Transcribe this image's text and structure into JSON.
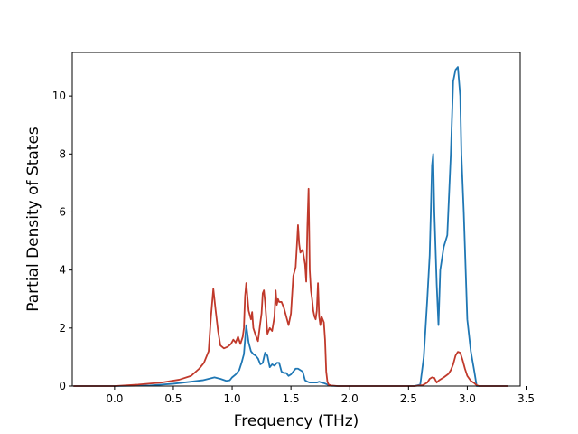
{
  "chart_data": {
    "type": "line",
    "title": "",
    "xlabel": "Frequency (THz)",
    "ylabel": "Partial Density of States",
    "xlim": [
      -0.36,
      3.45
    ],
    "ylim": [
      0,
      11.5
    ],
    "xticks": [
      0.0,
      0.5,
      1.0,
      1.5,
      2.0,
      2.5,
      3.0,
      3.5
    ],
    "xtick_labels": [
      "0.0",
      "0.5",
      "1.0",
      "1.5",
      "2.0",
      "2.5",
      "3.0",
      "3.5"
    ],
    "yticks": [
      0,
      2,
      4,
      6,
      8,
      10
    ],
    "ytick_labels": [
      "0",
      "2",
      "4",
      "6",
      "8",
      "10"
    ],
    "grid": false,
    "legend": "none",
    "series": [
      {
        "color": "#1f77b4",
        "x": [
          -0.35,
          0.0,
          0.3,
          0.5,
          0.65,
          0.75,
          0.8,
          0.85,
          0.9,
          0.95,
          0.98,
          1.0,
          1.03,
          1.06,
          1.08,
          1.1,
          1.12,
          1.14,
          1.16,
          1.18,
          1.2,
          1.22,
          1.24,
          1.26,
          1.28,
          1.3,
          1.32,
          1.34,
          1.36,
          1.38,
          1.4,
          1.42,
          1.44,
          1.46,
          1.48,
          1.5,
          1.52,
          1.54,
          1.56,
          1.58,
          1.6,
          1.62,
          1.64,
          1.66,
          1.68,
          1.7,
          1.72,
          1.74,
          1.76,
          1.78,
          1.8,
          1.82,
          1.84,
          1.9,
          2.0,
          2.3,
          2.55,
          2.6,
          2.63,
          2.66,
          2.68,
          2.69,
          2.7,
          2.71,
          2.72,
          2.74,
          2.755,
          2.77,
          2.8,
          2.83,
          2.86,
          2.88,
          2.9,
          2.92,
          2.94,
          2.95,
          2.97,
          3.0,
          3.03,
          3.06,
          3.08,
          3.12,
          3.35
        ],
        "y": [
          0,
          0,
          0.02,
          0.08,
          0.15,
          0.2,
          0.25,
          0.3,
          0.25,
          0.18,
          0.2,
          0.3,
          0.4,
          0.55,
          0.8,
          1.1,
          2.1,
          1.5,
          1.2,
          1.1,
          1.05,
          0.95,
          0.75,
          0.8,
          1.15,
          1.05,
          0.65,
          0.75,
          0.7,
          0.8,
          0.8,
          0.5,
          0.45,
          0.45,
          0.35,
          0.4,
          0.5,
          0.6,
          0.6,
          0.55,
          0.5,
          0.2,
          0.15,
          0.12,
          0.12,
          0.12,
          0.12,
          0.15,
          0.12,
          0.1,
          0.07,
          0.03,
          0.01,
          0,
          0,
          0,
          0,
          0.05,
          1.0,
          3.0,
          4.5,
          6.0,
          7.6,
          8.0,
          6.0,
          3.5,
          2.1,
          4.0,
          4.8,
          5.2,
          8.0,
          10.5,
          10.9,
          11.0,
          10.0,
          8.0,
          6.0,
          2.3,
          1.2,
          0.5,
          0.0,
          0,
          0
        ]
      },
      {
        "color": "#c0392b",
        "x": [
          -0.35,
          0.0,
          0.2,
          0.4,
          0.55,
          0.65,
          0.72,
          0.76,
          0.8,
          0.82,
          0.84,
          0.86,
          0.88,
          0.9,
          0.93,
          0.96,
          0.99,
          1.01,
          1.03,
          1.05,
          1.07,
          1.09,
          1.1,
          1.11,
          1.12,
          1.14,
          1.16,
          1.17,
          1.18,
          1.2,
          1.22,
          1.24,
          1.25,
          1.26,
          1.27,
          1.28,
          1.3,
          1.32,
          1.34,
          1.36,
          1.37,
          1.38,
          1.39,
          1.4,
          1.42,
          1.44,
          1.46,
          1.48,
          1.5,
          1.52,
          1.54,
          1.55,
          1.56,
          1.57,
          1.58,
          1.6,
          1.62,
          1.63,
          1.64,
          1.65,
          1.66,
          1.67,
          1.68,
          1.69,
          1.7,
          1.71,
          1.72,
          1.73,
          1.74,
          1.75,
          1.76,
          1.77,
          1.78,
          1.79,
          1.8,
          1.81,
          1.82,
          1.84,
          1.9,
          2.0,
          2.3,
          2.55,
          2.62,
          2.66,
          2.68,
          2.7,
          2.72,
          2.74,
          2.76,
          2.8,
          2.84,
          2.86,
          2.88,
          2.9,
          2.92,
          2.94,
          2.96,
          2.98,
          3.0,
          3.03,
          3.06,
          3.08,
          3.1,
          3.35
        ],
        "y": [
          0,
          0,
          0.05,
          0.12,
          0.22,
          0.35,
          0.6,
          0.8,
          1.2,
          2.4,
          3.35,
          2.6,
          1.9,
          1.4,
          1.3,
          1.35,
          1.45,
          1.6,
          1.5,
          1.7,
          1.45,
          1.7,
          2.0,
          3.1,
          3.55,
          2.6,
          2.3,
          2.55,
          2.0,
          1.75,
          1.55,
          2.2,
          2.5,
          3.2,
          3.3,
          2.9,
          1.8,
          2.0,
          1.9,
          2.4,
          3.3,
          2.8,
          3.0,
          2.9,
          2.9,
          2.7,
          2.4,
          2.1,
          2.5,
          3.8,
          4.1,
          4.8,
          5.55,
          4.9,
          4.6,
          4.7,
          4.2,
          3.6,
          5.5,
          6.8,
          4.0,
          3.3,
          3.0,
          2.6,
          2.4,
          2.3,
          2.6,
          3.55,
          2.4,
          2.1,
          2.4,
          2.3,
          2.2,
          1.6,
          0.5,
          0.15,
          0.05,
          0.02,
          0,
          0,
          0,
          0,
          0.03,
          0.12,
          0.25,
          0.3,
          0.28,
          0.12,
          0.2,
          0.3,
          0.42,
          0.55,
          0.75,
          1.05,
          1.18,
          1.15,
          0.9,
          0.6,
          0.35,
          0.18,
          0.1,
          0.03,
          0,
          0
        ]
      }
    ]
  }
}
